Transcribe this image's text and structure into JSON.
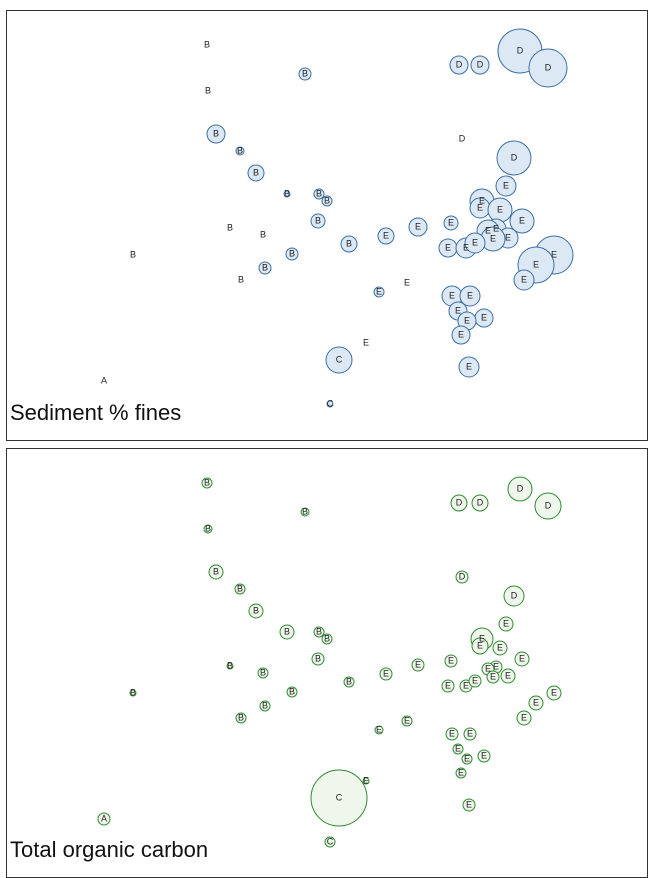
{
  "chart_data": [
    {
      "type": "bubble",
      "title": "Sediment % fines",
      "fill": "#dce9f5",
      "color": "#3b6fa3",
      "xlim": [
        0,
        648
      ],
      "ylim": [
        440,
        0
      ],
      "labels": [
        "B",
        "B",
        "B",
        "D",
        "D",
        "D",
        "D",
        "B",
        "B",
        "D",
        "D",
        "B",
        "B",
        "B",
        "B",
        "E",
        "E",
        "E",
        "E",
        "E",
        "E",
        "E",
        "E",
        "E",
        "E",
        "E",
        "E",
        "E",
        "E",
        "E",
        "E",
        "E",
        "E",
        "B",
        "B",
        "B",
        "B",
        "B",
        "B",
        "B",
        "B",
        "E",
        "E",
        "E",
        "E",
        "E",
        "E",
        "E",
        "E",
        "C",
        "E",
        "E",
        "A",
        "C"
      ],
      "x": [
        207,
        305,
        208,
        459,
        480,
        520,
        548,
        216,
        240,
        462,
        514,
        256,
        287,
        319,
        327,
        506,
        482,
        480,
        500,
        522,
        496,
        488,
        508,
        493,
        451,
        418,
        386,
        448,
        466,
        475,
        554,
        536,
        524,
        318,
        230,
        263,
        349,
        292,
        265,
        133,
        241,
        379,
        407,
        452,
        470,
        458,
        484,
        467,
        461,
        339,
        366,
        469,
        104,
        330
      ],
      "y": [
        45,
        74,
        91,
        65,
        65,
        51,
        68,
        134,
        151,
        139,
        158,
        173,
        194,
        194,
        201,
        186,
        201,
        208,
        210,
        221,
        229,
        231,
        238,
        239,
        223,
        227,
        236,
        248,
        248,
        243,
        255,
        265,
        280,
        221,
        228,
        235,
        244,
        254,
        268,
        255,
        280,
        292,
        283,
        296,
        296,
        311,
        318,
        321,
        335,
        360,
        343,
        367,
        381,
        404
      ],
      "sizes": [
        0,
        6,
        0,
        9,
        9,
        22,
        19,
        9,
        4,
        0,
        17,
        8,
        3,
        5,
        5,
        10,
        12,
        10,
        12,
        12,
        10,
        11,
        10,
        12,
        7,
        9,
        8,
        9,
        10,
        10,
        19,
        18,
        10,
        7,
        0,
        0,
        8,
        6,
        6,
        0,
        0,
        5,
        0,
        10,
        10,
        9,
        9,
        9,
        9,
        13,
        0,
        10,
        0,
        3
      ]
    },
    {
      "type": "bubble",
      "title": "Total organic carbon",
      "fill": "#eff6ec",
      "color": "#2e8a2e",
      "xlim": [
        0,
        648
      ],
      "ylim": [
        440,
        0
      ],
      "labels": [
        "B",
        "B",
        "B",
        "D",
        "D",
        "D",
        "D",
        "B",
        "B",
        "D",
        "D",
        "B",
        "B",
        "B",
        "B",
        "E",
        "E",
        "E",
        "E",
        "E",
        "E",
        "E",
        "E",
        "E",
        "E",
        "E",
        "E",
        "E",
        "E",
        "E",
        "E",
        "E",
        "E",
        "B",
        "B",
        "B",
        "B",
        "B",
        "B",
        "B",
        "B",
        "E",
        "E",
        "E",
        "E",
        "E",
        "E",
        "E",
        "E",
        "C",
        "E",
        "E",
        "A",
        "C"
      ],
      "x": [
        207,
        305,
        208,
        459,
        480,
        520,
        548,
        216,
        240,
        462,
        514,
        256,
        287,
        319,
        327,
        506,
        482,
        480,
        500,
        522,
        496,
        488,
        508,
        493,
        451,
        418,
        386,
        448,
        466,
        475,
        554,
        536,
        524,
        318,
        230,
        263,
        349,
        292,
        265,
        133,
        241,
        379,
        407,
        452,
        470,
        458,
        484,
        467,
        461,
        339,
        366,
        469,
        104,
        330
      ],
      "y": [
        45,
        74,
        91,
        65,
        65,
        51,
        68,
        134,
        151,
        139,
        158,
        173,
        194,
        194,
        201,
        186,
        201,
        208,
        210,
        221,
        229,
        231,
        238,
        239,
        223,
        227,
        236,
        248,
        248,
        243,
        255,
        265,
        280,
        221,
        228,
        235,
        244,
        254,
        268,
        255,
        280,
        292,
        283,
        296,
        296,
        311,
        318,
        321,
        335,
        360,
        343,
        367,
        381,
        404
      ],
      "sizes": [
        5,
        4,
        4,
        8,
        8,
        12,
        13,
        7,
        5,
        6,
        10,
        7,
        7,
        5,
        5,
        7,
        11,
        8,
        7,
        7,
        6,
        6,
        7,
        6,
        6,
        6,
        6,
        6,
        6,
        6,
        7,
        7,
        7,
        6,
        3,
        5,
        5,
        5,
        5,
        3,
        5,
        4,
        5,
        6,
        6,
        5,
        6,
        5,
        5,
        28,
        3,
        6,
        6,
        5
      ]
    }
  ]
}
